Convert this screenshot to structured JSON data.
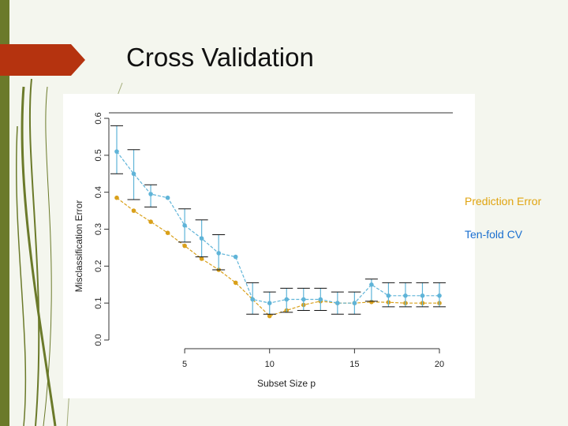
{
  "slide": {
    "title": "Cross Validation",
    "background_color": "#f4f6ee",
    "accent_color": "#b5330f",
    "decoration_color": "#6b7a2a"
  },
  "legend": {
    "prediction_label": "Prediction Error",
    "prediction_color": "#e0a410",
    "cv_label": "Ten-fold CV",
    "cv_color": "#1a6fcf"
  },
  "chart_data": {
    "type": "line",
    "xlabel": "Subset Size p",
    "ylabel": "Misclassification Error",
    "xlim": [
      0,
      20
    ],
    "ylim": [
      0,
      0.6
    ],
    "x_ticks": [
      "5",
      "10",
      "15",
      "20"
    ],
    "y_ticks": [
      "0.0",
      "0.1",
      "0.2",
      "0.3",
      "0.4",
      "0.5",
      "0.6"
    ],
    "x": [
      1,
      2,
      3,
      4,
      5,
      6,
      7,
      8,
      9,
      10,
      11,
      12,
      13,
      14,
      15,
      16,
      17,
      18,
      19,
      20
    ],
    "series": [
      {
        "color": "#d9a01a",
        "values": [
          0.385,
          0.35,
          0.32,
          0.29,
          0.255,
          0.22,
          0.19,
          0.155,
          0.11,
          0.065,
          0.08,
          0.095,
          0.105,
          0.1,
          0.1,
          0.103,
          0.102,
          0.1,
          0.1,
          0.1
        ]
      },
      {
        "color": "#5fb4d8",
        "values": [
          0.51,
          0.45,
          0.395,
          0.385,
          0.31,
          0.275,
          0.235,
          0.225,
          0.11,
          0.1,
          0.11,
          0.11,
          0.11,
          0.1,
          0.1,
          0.15,
          0.12,
          0.12,
          0.12,
          0.12
        ],
        "error_lower": [
          0.45,
          0.38,
          0.36,
          null,
          0.265,
          0.225,
          0.19,
          null,
          0.07,
          0.07,
          0.075,
          0.08,
          0.08,
          0.07,
          0.07,
          0.105,
          0.09,
          0.09,
          0.09,
          0.09
        ],
        "error_upper": [
          0.58,
          0.515,
          0.42,
          null,
          0.355,
          0.325,
          0.285,
          null,
          0.155,
          0.13,
          0.14,
          0.14,
          0.14,
          0.13,
          0.13,
          0.165,
          0.155,
          0.155,
          0.155,
          0.155
        ]
      }
    ]
  }
}
